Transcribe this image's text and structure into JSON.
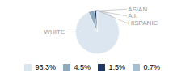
{
  "chart_data": {
    "type": "pie",
    "categories": [
      "WHITE",
      "ASIAN",
      "A.I.",
      "HISPANIC"
    ],
    "values": [
      93.3,
      4.5,
      1.5,
      0.7
    ],
    "colors": [
      "#dce6f1",
      "#8eaabf",
      "#1f3864",
      "#a8bfcf"
    ],
    "value_labels": [
      "93.3%",
      "4.5%",
      "1.5%",
      "0.7%"
    ],
    "legend": "bottom"
  }
}
